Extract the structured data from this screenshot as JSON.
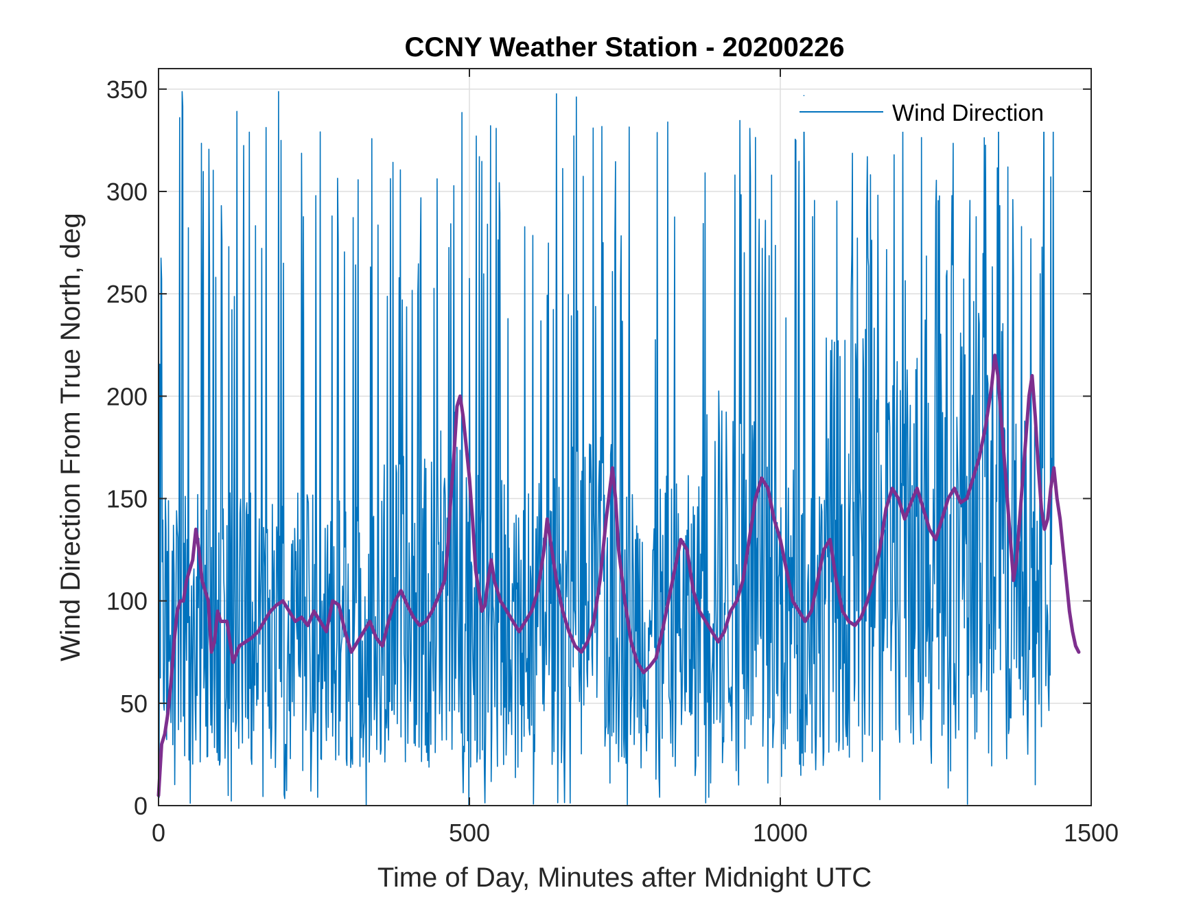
{
  "chart_data": {
    "type": "line",
    "title": "CCNY Weather Station - 20200226",
    "xlabel": "Time of Day, Minutes after Midnight UTC",
    "ylabel": "Wind Direction From True North, deg",
    "xlim": [
      0,
      1500
    ],
    "ylim": [
      0,
      360
    ],
    "xticks": [
      0,
      500,
      1000,
      1500
    ],
    "yticks": [
      0,
      50,
      100,
      150,
      200,
      250,
      300,
      350
    ],
    "grid": true,
    "legend": {
      "position": "top-right",
      "entries": [
        "Wind Direction"
      ]
    },
    "series": [
      {
        "name": "Wind Direction",
        "color": "#0072BD",
        "sampling_interval_min": 1,
        "x_start": 0,
        "x_end": 1440,
        "segments": [
          [
            0,
            5,
            150,
            0,
            310
          ],
          [
            5,
            60,
            85,
            0,
            350
          ],
          [
            60,
            360,
            85,
            0,
            355
          ],
          [
            360,
            440,
            95,
            0,
            340
          ],
          [
            440,
            500,
            110,
            0,
            350
          ],
          [
            500,
            640,
            90,
            0,
            340
          ],
          [
            640,
            740,
            100,
            0,
            350
          ],
          [
            740,
            870,
            90,
            0,
            340
          ],
          [
            870,
            960,
            115,
            0,
            350
          ],
          [
            960,
            1070,
            95,
            0,
            350
          ],
          [
            1070,
            1230,
            130,
            0,
            350
          ],
          [
            1230,
            1360,
            150,
            0,
            355
          ],
          [
            1360,
            1440,
            110,
            10,
            350
          ]
        ]
      },
      {
        "color": "#7E2F8E",
        "points": [
          [
            0,
            5
          ],
          [
            5,
            30
          ],
          [
            10,
            35
          ],
          [
            15,
            45
          ],
          [
            20,
            60
          ],
          [
            25,
            80
          ],
          [
            30,
            95
          ],
          [
            35,
            100
          ],
          [
            40,
            100
          ],
          [
            45,
            110
          ],
          [
            50,
            115
          ],
          [
            55,
            120
          ],
          [
            60,
            135
          ],
          [
            65,
            125
          ],
          [
            70,
            110
          ],
          [
            75,
            105
          ],
          [
            80,
            100
          ],
          [
            85,
            75
          ],
          [
            90,
            80
          ],
          [
            95,
            95
          ],
          [
            100,
            90
          ],
          [
            110,
            90
          ],
          [
            115,
            80
          ],
          [
            120,
            70
          ],
          [
            130,
            78
          ],
          [
            140,
            80
          ],
          [
            150,
            82
          ],
          [
            160,
            85
          ],
          [
            170,
            90
          ],
          [
            180,
            95
          ],
          [
            190,
            98
          ],
          [
            200,
            100
          ],
          [
            210,
            95
          ],
          [
            220,
            90
          ],
          [
            230,
            92
          ],
          [
            240,
            88
          ],
          [
            250,
            95
          ],
          [
            260,
            90
          ],
          [
            270,
            85
          ],
          [
            280,
            100
          ],
          [
            290,
            98
          ],
          [
            300,
            85
          ],
          [
            310,
            75
          ],
          [
            320,
            80
          ],
          [
            330,
            85
          ],
          [
            340,
            90
          ],
          [
            350,
            82
          ],
          [
            360,
            78
          ],
          [
            370,
            90
          ],
          [
            380,
            100
          ],
          [
            390,
            105
          ],
          [
            400,
            98
          ],
          [
            410,
            92
          ],
          [
            420,
            88
          ],
          [
            430,
            90
          ],
          [
            440,
            95
          ],
          [
            450,
            102
          ],
          [
            460,
            110
          ],
          [
            465,
            125
          ],
          [
            470,
            150
          ],
          [
            475,
            170
          ],
          [
            480,
            195
          ],
          [
            485,
            200
          ],
          [
            490,
            190
          ],
          [
            495,
            175
          ],
          [
            500,
            160
          ],
          [
            505,
            140
          ],
          [
            510,
            115
          ],
          [
            515,
            105
          ],
          [
            520,
            95
          ],
          [
            525,
            98
          ],
          [
            530,
            110
          ],
          [
            535,
            120
          ],
          [
            540,
            110
          ],
          [
            550,
            100
          ],
          [
            560,
            95
          ],
          [
            570,
            90
          ],
          [
            580,
            85
          ],
          [
            590,
            90
          ],
          [
            600,
            95
          ],
          [
            610,
            105
          ],
          [
            620,
            125
          ],
          [
            625,
            140
          ],
          [
            630,
            130
          ],
          [
            640,
            110
          ],
          [
            650,
            95
          ],
          [
            660,
            85
          ],
          [
            670,
            78
          ],
          [
            680,
            75
          ],
          [
            690,
            80
          ],
          [
            700,
            90
          ],
          [
            710,
            110
          ],
          [
            720,
            140
          ],
          [
            730,
            165
          ],
          [
            735,
            150
          ],
          [
            740,
            125
          ],
          [
            750,
            100
          ],
          [
            760,
            80
          ],
          [
            770,
            70
          ],
          [
            780,
            65
          ],
          [
            790,
            68
          ],
          [
            800,
            72
          ],
          [
            810,
            85
          ],
          [
            820,
            100
          ],
          [
            830,
            115
          ],
          [
            840,
            130
          ],
          [
            850,
            125
          ],
          [
            860,
            105
          ],
          [
            870,
            95
          ],
          [
            880,
            90
          ],
          [
            890,
            85
          ],
          [
            900,
            80
          ],
          [
            910,
            85
          ],
          [
            920,
            95
          ],
          [
            930,
            100
          ],
          [
            940,
            110
          ],
          [
            950,
            130
          ],
          [
            960,
            150
          ],
          [
            970,
            160
          ],
          [
            980,
            155
          ],
          [
            990,
            140
          ],
          [
            1000,
            130
          ],
          [
            1010,
            115
          ],
          [
            1020,
            100
          ],
          [
            1030,
            95
          ],
          [
            1040,
            90
          ],
          [
            1050,
            95
          ],
          [
            1060,
            110
          ],
          [
            1070,
            125
          ],
          [
            1080,
            130
          ],
          [
            1090,
            110
          ],
          [
            1100,
            95
          ],
          [
            1110,
            90
          ],
          [
            1120,
            88
          ],
          [
            1130,
            92
          ],
          [
            1140,
            100
          ],
          [
            1150,
            110
          ],
          [
            1160,
            125
          ],
          [
            1170,
            145
          ],
          [
            1180,
            155
          ],
          [
            1190,
            150
          ],
          [
            1200,
            140
          ],
          [
            1210,
            148
          ],
          [
            1220,
            155
          ],
          [
            1230,
            145
          ],
          [
            1240,
            135
          ],
          [
            1250,
            130
          ],
          [
            1260,
            140
          ],
          [
            1270,
            150
          ],
          [
            1280,
            155
          ],
          [
            1290,
            148
          ],
          [
            1300,
            150
          ],
          [
            1310,
            160
          ],
          [
            1320,
            170
          ],
          [
            1330,
            185
          ],
          [
            1340,
            205
          ],
          [
            1345,
            220
          ],
          [
            1350,
            210
          ],
          [
            1355,
            190
          ],
          [
            1360,
            170
          ],
          [
            1365,
            150
          ],
          [
            1370,
            130
          ],
          [
            1375,
            110
          ],
          [
            1380,
            120
          ],
          [
            1385,
            140
          ],
          [
            1390,
            160
          ],
          [
            1395,
            180
          ],
          [
            1400,
            200
          ],
          [
            1405,
            210
          ],
          [
            1410,
            190
          ],
          [
            1415,
            165
          ],
          [
            1420,
            145
          ],
          [
            1425,
            135
          ],
          [
            1430,
            140
          ],
          [
            1435,
            155
          ],
          [
            1440,
            165
          ],
          [
            1445,
            150
          ],
          [
            1450,
            140
          ],
          [
            1455,
            125
          ],
          [
            1460,
            110
          ],
          [
            1465,
            95
          ],
          [
            1470,
            85
          ],
          [
            1475,
            78
          ],
          [
            1480,
            75
          ]
        ]
      }
    ]
  }
}
